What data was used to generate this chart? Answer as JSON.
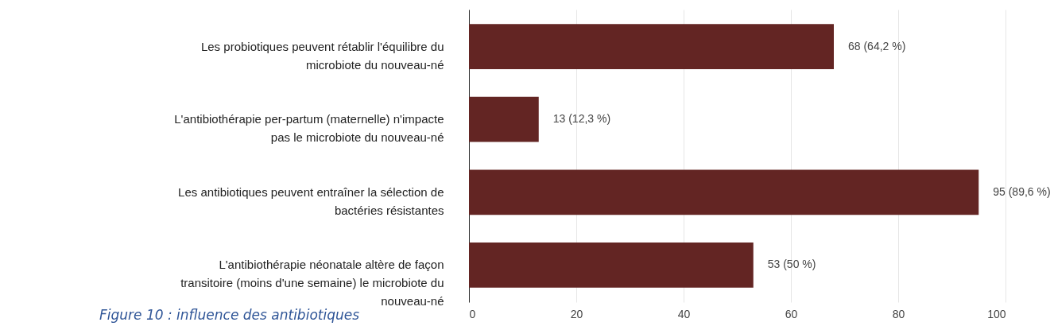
{
  "chart_data": {
    "type": "bar",
    "orientation": "horizontal",
    "categories": [
      "Les probiotiques peuvent rétablir l'équilibre du microbiote du nouveau-né",
      "L'antibiothérapie per-partum (maternelle) n'impacte pas le microbiote du nouveau-né",
      "Les antibiotiques peuvent entraîner la sélection de bactéries résistantes",
      "L'antibiothérapie néonatale altère de façon transitoire (moins d'une semaine) le microbiote du nouveau-né"
    ],
    "values": [
      68,
      13,
      95,
      53
    ],
    "value_labels": [
      "68 (64,2 %)",
      "13 (12,3 %)",
      "95 (89,6 %)",
      "53 (50 %)"
    ],
    "color": "#632523",
    "xlim": [
      0,
      100
    ],
    "xticks": [
      0,
      20,
      40,
      60,
      80,
      100
    ],
    "grid": "x",
    "annotations": [
      "Figure 10 : influence des antibiotiques"
    ]
  }
}
